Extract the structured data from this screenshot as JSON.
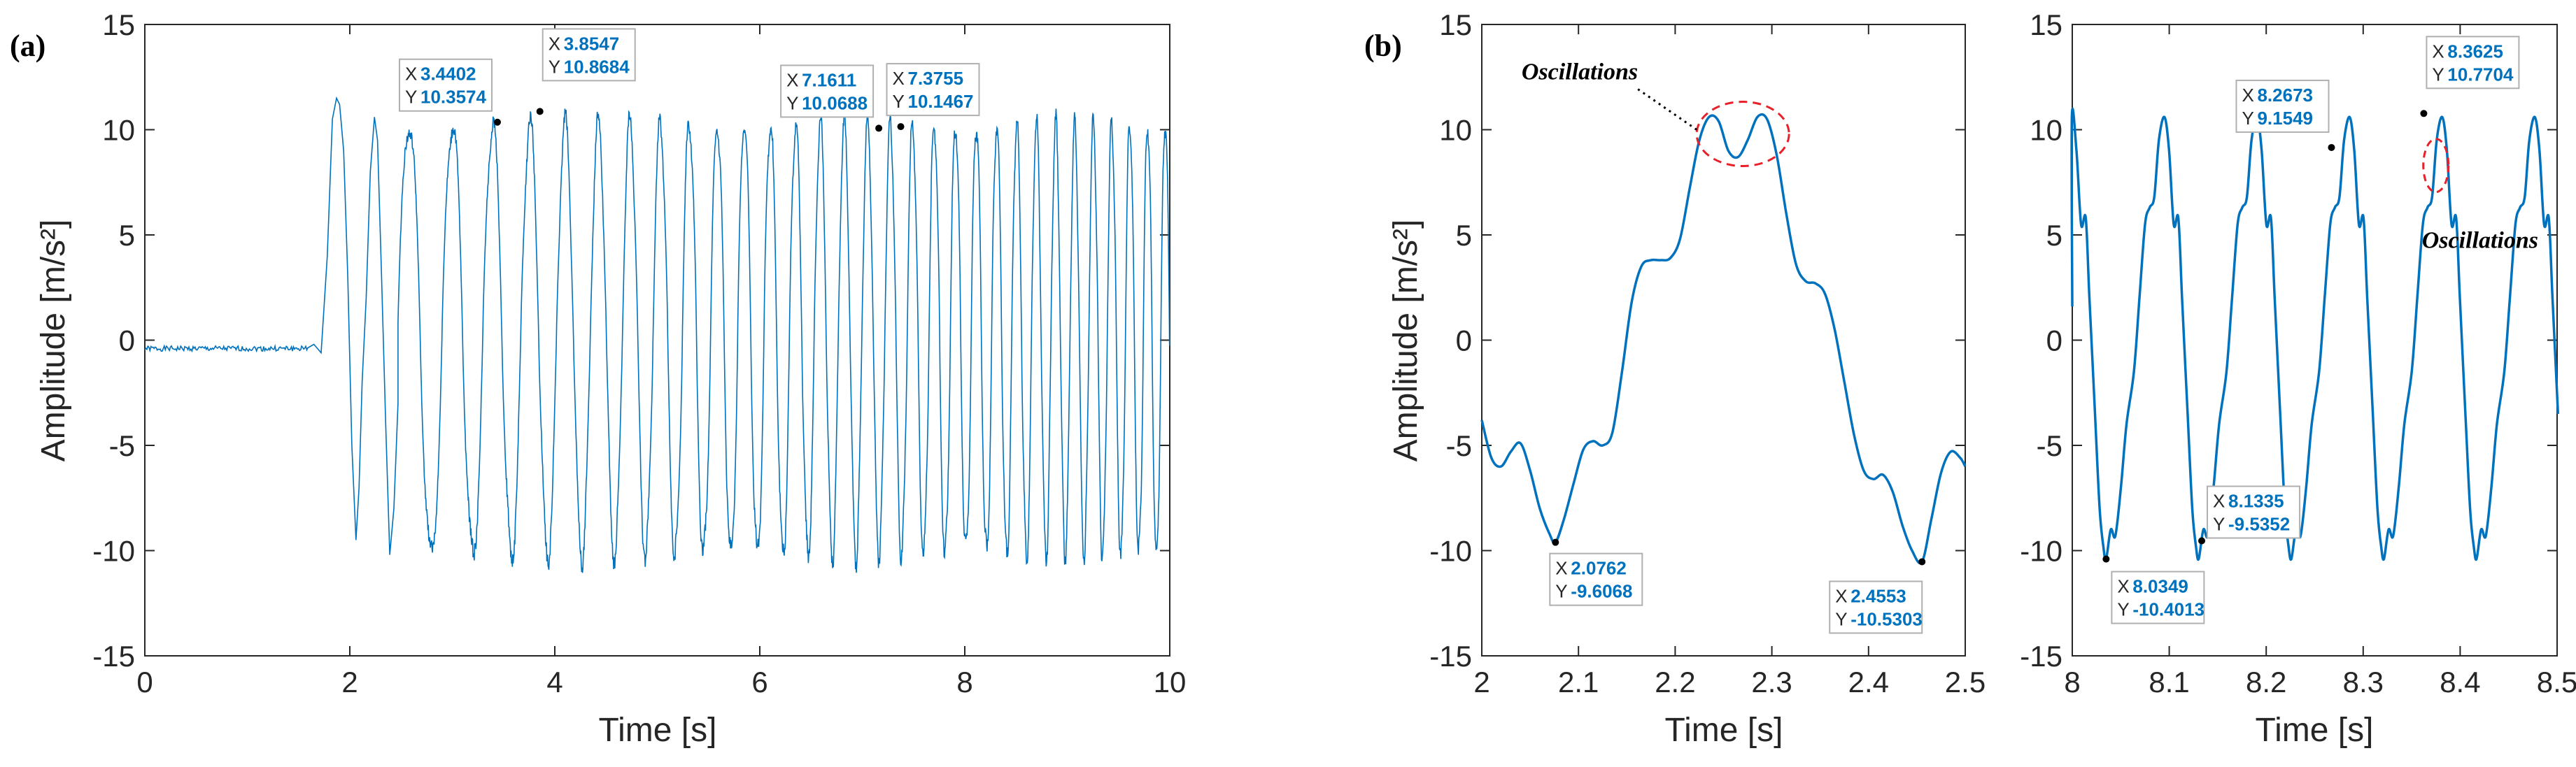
{
  "panel_a_label": "(a)",
  "panel_b_label": "(b)",
  "chart_data": [
    {
      "type": "line",
      "id": "a",
      "xlabel": "Time [s]",
      "ylabel": "Amplitude [m/s²]",
      "xlim": [
        0,
        10
      ],
      "ylim": [
        -15,
        15
      ],
      "xticks": [
        0,
        2,
        4,
        6,
        8,
        10
      ],
      "yticks": [
        -15,
        -10,
        -5,
        0,
        5,
        10,
        15
      ],
      "series_color": "#0072bd",
      "signal": {
        "quiet_until": 1.6,
        "baseline": -0.4,
        "start_freq": 2.2,
        "end_freq": 5.9,
        "pos_amp": 10.4,
        "neg_amp": -10.3
      },
      "datatips": [
        {
          "x": 3.4402,
          "y": 10.3574,
          "x_label": "3.4402",
          "y_label": "10.3574"
        },
        {
          "x": 3.8547,
          "y": 10.8684,
          "x_label": "3.8547",
          "y_label": "10.8684"
        },
        {
          "x": 7.1611,
          "y": 10.0688,
          "x_label": "7.1611",
          "y_label": "10.0688"
        },
        {
          "x": 7.3755,
          "y": 10.1467,
          "x_label": "7.3755",
          "y_label": "10.1467"
        }
      ]
    },
    {
      "type": "line",
      "id": "b1",
      "xlabel": "Time [s]",
      "ylabel": "Amplitude [m/s²]",
      "xlim": [
        2,
        2.5
      ],
      "ylim": [
        -15,
        15
      ],
      "xticks": [
        2,
        2.1,
        2.2,
        2.3,
        2.4,
        2.5
      ],
      "yticks": [
        -15,
        -10,
        -5,
        0,
        5,
        10,
        15
      ],
      "series_color": "#0072bd",
      "points": [
        [
          2.0,
          -3.8
        ],
        [
          2.01,
          -5.6
        ],
        [
          2.02,
          -6.0
        ],
        [
          2.03,
          -5.3
        ],
        [
          2.04,
          -4.9
        ],
        [
          2.05,
          -6.2
        ],
        [
          2.06,
          -8.0
        ],
        [
          2.07,
          -9.2
        ],
        [
          2.0762,
          -9.6068
        ],
        [
          2.085,
          -8.5
        ],
        [
          2.095,
          -6.8
        ],
        [
          2.105,
          -5.2
        ],
        [
          2.115,
          -4.8
        ],
        [
          2.125,
          -5.0
        ],
        [
          2.135,
          -4.4
        ],
        [
          2.145,
          -1.5
        ],
        [
          2.155,
          1.8
        ],
        [
          2.165,
          3.5
        ],
        [
          2.175,
          3.8
        ],
        [
          2.185,
          3.8
        ],
        [
          2.195,
          3.9
        ],
        [
          2.205,
          4.8
        ],
        [
          2.215,
          7.2
        ],
        [
          2.225,
          9.5
        ],
        [
          2.235,
          10.6
        ],
        [
          2.245,
          10.4
        ],
        [
          2.255,
          9.0
        ],
        [
          2.265,
          8.7
        ],
        [
          2.275,
          9.5
        ],
        [
          2.285,
          10.6
        ],
        [
          2.295,
          10.5
        ],
        [
          2.305,
          8.8
        ],
        [
          2.315,
          6.0
        ],
        [
          2.325,
          3.6
        ],
        [
          2.335,
          2.8
        ],
        [
          2.345,
          2.7
        ],
        [
          2.355,
          2.2
        ],
        [
          2.365,
          0.5
        ],
        [
          2.375,
          -2.0
        ],
        [
          2.385,
          -4.5
        ],
        [
          2.395,
          -6.2
        ],
        [
          2.405,
          -6.6
        ],
        [
          2.415,
          -6.4
        ],
        [
          2.425,
          -7.2
        ],
        [
          2.435,
          -8.8
        ],
        [
          2.445,
          -10.0
        ],
        [
          2.4553,
          -10.5303
        ],
        [
          2.465,
          -8.5
        ],
        [
          2.475,
          -6.3
        ],
        [
          2.485,
          -5.3
        ],
        [
          2.495,
          -5.6
        ],
        [
          2.5,
          -6.0
        ]
      ],
      "datatips": [
        {
          "x": 2.0762,
          "y": -9.6068,
          "x_label": "2.0762",
          "y_label": "-9.6068"
        },
        {
          "x": 2.4553,
          "y": -10.5303,
          "x_label": "2.4553",
          "y_label": "-10.5303"
        }
      ],
      "annotation": {
        "text": "Oscillations",
        "x": 2.27,
        "y": 9.8
      }
    },
    {
      "type": "line",
      "id": "b2",
      "xlabel": "Time [s]",
      "xlim": [
        8,
        8.5
      ],
      "ylim": [
        -15,
        15
      ],
      "xticks": [
        8,
        8.1,
        8.2,
        8.3,
        8.4,
        8.5
      ],
      "yticks": [
        -15,
        -10,
        -5,
        0,
        5,
        10,
        15
      ],
      "series_color": "#0072bd",
      "signal": {
        "period": 0.0955,
        "peak_phase": 8.07
      },
      "datatips": [
        {
          "x": 8.0349,
          "y": -10.4013,
          "x_label": "8.0349",
          "y_label": "-10.4013"
        },
        {
          "x": 8.1335,
          "y": -9.5352,
          "x_label": "8.1335",
          "y_label": "-9.5352"
        },
        {
          "x": 8.2673,
          "y": 9.1549,
          "x_label": "8.2673",
          "y_label": "9.1549"
        },
        {
          "x": 8.3625,
          "y": 10.7704,
          "x_label": "8.3625",
          "y_label": "10.7704"
        }
      ],
      "annotation": {
        "text": "Oscillations",
        "x": 8.375,
        "y": 8.3
      }
    }
  ],
  "tip_x_key": "X",
  "tip_y_key": "Y"
}
